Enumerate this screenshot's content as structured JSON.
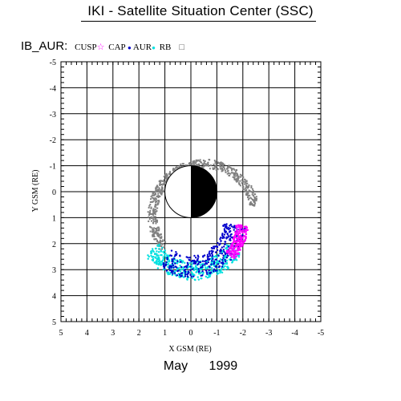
{
  "header": {
    "title": "IKI - Satellite Situation Center (SSC)"
  },
  "legend": {
    "plot_label": "IB_AUR:",
    "items": [
      {
        "label": "CUSP",
        "symbol": "☆",
        "color": "#ff00ff"
      },
      {
        "label": "CAP",
        "symbol": "●",
        "color": "#0000cc"
      },
      {
        "label": "AUR",
        "symbol": "●",
        "color": "#00e0e0"
      },
      {
        "label": "RB",
        "symbol": "□",
        "color": "#555555"
      }
    ]
  },
  "footer": {
    "month": "May",
    "year": "1999"
  },
  "chart_data": {
    "type": "scatter",
    "xlabel": "X GSM (RE)",
    "ylabel": "Y GSM (RE)",
    "xlim": [
      5,
      -5
    ],
    "ylim": [
      -5,
      5
    ],
    "x_ticks": [
      "5",
      "4",
      "3",
      "2",
      "1",
      "0",
      "-1",
      "-2",
      "-3",
      "-4",
      "-5"
    ],
    "y_ticks": [
      "-5",
      "-4",
      "-3",
      "-2",
      "-1",
      "0",
      "1",
      "2",
      "3",
      "4",
      "5"
    ],
    "grid": true,
    "earth": {
      "center": [
        0,
        0
      ],
      "radius": 1,
      "night_side": "negative-x"
    },
    "series": [
      {
        "name": "CUSP",
        "color": "#ff00ff",
        "region": "arc",
        "ring_center": [
          0.0,
          1.2
        ],
        "inner_radius": 1.75,
        "outer_radius": 2.2,
        "angle_range_deg": [
          140,
          178
        ],
        "points": 150
      },
      {
        "name": "CAP",
        "color": "#0000cc",
        "region": "arc",
        "ring_center": [
          0.0,
          1.2
        ],
        "inner_radius": 1.25,
        "outer_radius": 2.1,
        "angle_range_deg": [
          55,
          178
        ],
        "points": 320
      },
      {
        "name": "AUR",
        "color": "#00e0e0",
        "region": "arc",
        "ring_center": [
          -0.1,
          1.1
        ],
        "inner_radius": 1.6,
        "outer_radius": 2.3,
        "angle_range_deg": [
          35,
          145
        ],
        "points": 420
      },
      {
        "name": "RB",
        "color": "#808080",
        "region": "arc",
        "ring_center": [
          -0.5,
          0.9
        ],
        "inner_radius": 1.8,
        "outer_radius": 2.15,
        "angle_range_deg": [
          -170,
          40
        ],
        "points": 650
      }
    ]
  }
}
